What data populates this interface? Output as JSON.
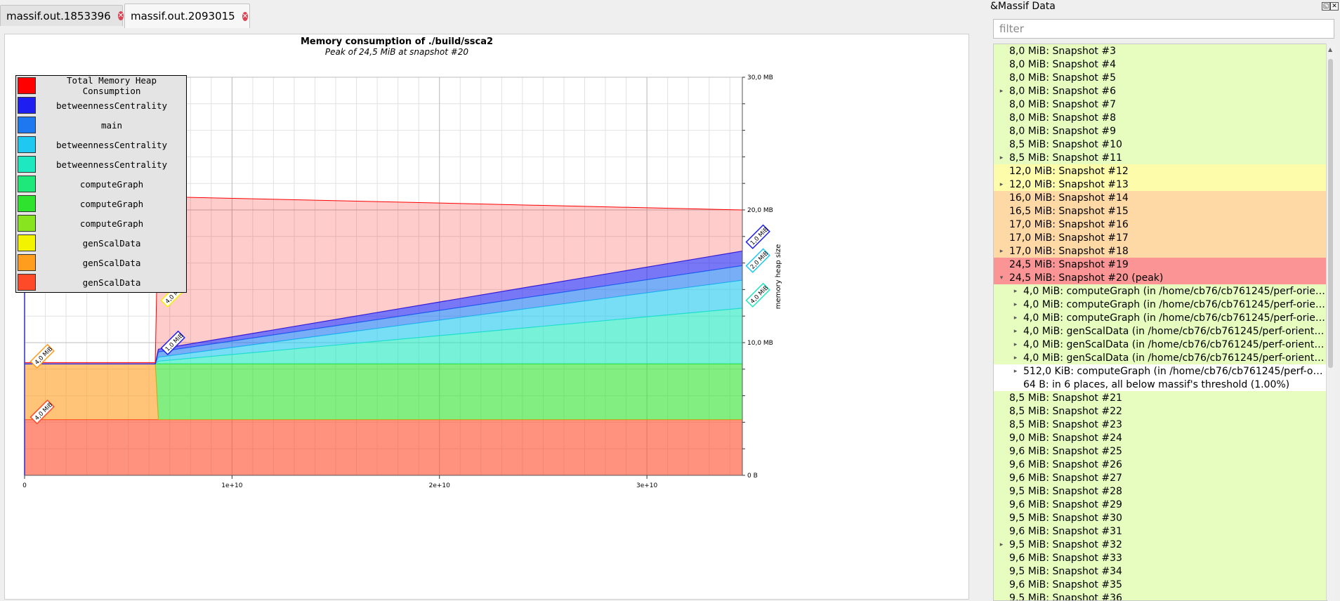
{
  "tabs": [
    {
      "label": "massif.out.1853396",
      "active": false
    },
    {
      "label": "massif.out.2093015",
      "active": true
    }
  ],
  "panel": {
    "title": "&Massif Data",
    "filter_placeholder": "filter",
    "rows": [
      {
        "text": "8,0 MiB: Snapshot #3",
        "bg": "#e7fcbf",
        "expandable": false,
        "expanded": false,
        "child": false
      },
      {
        "text": "8,0 MiB: Snapshot #4",
        "bg": "#e7fcbf",
        "expandable": false,
        "expanded": false,
        "child": false
      },
      {
        "text": "8,0 MiB: Snapshot #5",
        "bg": "#e7fcbf",
        "expandable": false,
        "expanded": false,
        "child": false
      },
      {
        "text": "8,0 MiB: Snapshot #6",
        "bg": "#e7fcbf",
        "expandable": true,
        "expanded": false,
        "child": false
      },
      {
        "text": "8,0 MiB: Snapshot #7",
        "bg": "#e7fcbf",
        "expandable": false,
        "expanded": false,
        "child": false
      },
      {
        "text": "8,0 MiB: Snapshot #8",
        "bg": "#e7fcbf",
        "expandable": false,
        "expanded": false,
        "child": false
      },
      {
        "text": "8,0 MiB: Snapshot #9",
        "bg": "#e7fcbf",
        "expandable": false,
        "expanded": false,
        "child": false
      },
      {
        "text": "8,5 MiB: Snapshot #10",
        "bg": "#e7fcbf",
        "expandable": false,
        "expanded": false,
        "child": false
      },
      {
        "text": "8,5 MiB: Snapshot #11",
        "bg": "#e7fcbf",
        "expandable": true,
        "expanded": false,
        "child": false
      },
      {
        "text": "12,0 MiB: Snapshot #12",
        "bg": "#fdfcaa",
        "expandable": false,
        "expanded": false,
        "child": false
      },
      {
        "text": "12,0 MiB: Snapshot #13",
        "bg": "#fdfcaa",
        "expandable": true,
        "expanded": false,
        "child": false
      },
      {
        "text": "16,0 MiB: Snapshot #14",
        "bg": "#fed9a5",
        "expandable": false,
        "expanded": false,
        "child": false
      },
      {
        "text": "16,5 MiB: Snapshot #15",
        "bg": "#fed9a5",
        "expandable": false,
        "expanded": false,
        "child": false
      },
      {
        "text": "17,0 MiB: Snapshot #16",
        "bg": "#fed9a5",
        "expandable": false,
        "expanded": false,
        "child": false
      },
      {
        "text": "17,0 MiB: Snapshot #17",
        "bg": "#fed9a5",
        "expandable": false,
        "expanded": false,
        "child": false
      },
      {
        "text": "17,0 MiB: Snapshot #18",
        "bg": "#fed9a5",
        "expandable": true,
        "expanded": false,
        "child": false
      },
      {
        "text": "24,5 MiB: Snapshot #19",
        "bg": "#fb9595",
        "expandable": false,
        "expanded": false,
        "child": false
      },
      {
        "text": "24,5 MiB: Snapshot #20 (peak)",
        "bg": "#fb9595",
        "expandable": true,
        "expanded": true,
        "child": false
      },
      {
        "text": "4,0 MiB: computeGraph (in /home/cb76/cb761245/perf-orien…",
        "bg": "#e7fcbf",
        "expandable": true,
        "expanded": false,
        "child": true
      },
      {
        "text": "4,0 MiB: computeGraph (in /home/cb76/cb761245/perf-orien…",
        "bg": "#e7fcbf",
        "expandable": true,
        "expanded": false,
        "child": true
      },
      {
        "text": "4,0 MiB: computeGraph (in /home/cb76/cb761245/perf-orien…",
        "bg": "#e7fcbf",
        "expandable": true,
        "expanded": false,
        "child": true
      },
      {
        "text": "4,0 MiB: genScalData (in /home/cb76/cb761245/perf-oriente…",
        "bg": "#e7fcbf",
        "expandable": true,
        "expanded": false,
        "child": true
      },
      {
        "text": "4,0 MiB: genScalData (in /home/cb76/cb761245/perf-oriente…",
        "bg": "#e7fcbf",
        "expandable": true,
        "expanded": false,
        "child": true
      },
      {
        "text": "4,0 MiB: genScalData (in /home/cb76/cb761245/perf-oriente…",
        "bg": "#e7fcbf",
        "expandable": true,
        "expanded": false,
        "child": true
      },
      {
        "text": "512,0 KiB: computeGraph (in /home/cb76/cb761245/perf-orie…",
        "bg": "#ffffff",
        "expandable": true,
        "expanded": false,
        "child": true
      },
      {
        "text": "64 B: in 6 places, all below massif's threshold (1.00%)",
        "bg": "#ffffff",
        "expandable": false,
        "expanded": false,
        "child": true
      },
      {
        "text": "8,5 MiB: Snapshot #21",
        "bg": "#e7fcbf",
        "expandable": false,
        "expanded": false,
        "child": false
      },
      {
        "text": "8,5 MiB: Snapshot #22",
        "bg": "#e7fcbf",
        "expandable": false,
        "expanded": false,
        "child": false
      },
      {
        "text": "8,5 MiB: Snapshot #23",
        "bg": "#e7fcbf",
        "expandable": false,
        "expanded": false,
        "child": false
      },
      {
        "text": "9,0 MiB: Snapshot #24",
        "bg": "#e7fcbf",
        "expandable": false,
        "expanded": false,
        "child": false
      },
      {
        "text": "9,6 MiB: Snapshot #25",
        "bg": "#e7fcbf",
        "expandable": false,
        "expanded": false,
        "child": false
      },
      {
        "text": "9,6 MiB: Snapshot #26",
        "bg": "#e7fcbf",
        "expandable": false,
        "expanded": false,
        "child": false
      },
      {
        "text": "9,6 MiB: Snapshot #27",
        "bg": "#e7fcbf",
        "expandable": false,
        "expanded": false,
        "child": false
      },
      {
        "text": "9,5 MiB: Snapshot #28",
        "bg": "#e7fcbf",
        "expandable": false,
        "expanded": false,
        "child": false
      },
      {
        "text": "9,6 MiB: Snapshot #29",
        "bg": "#e7fcbf",
        "expandable": false,
        "expanded": false,
        "child": false
      },
      {
        "text": "9,5 MiB: Snapshot #30",
        "bg": "#e7fcbf",
        "expandable": false,
        "expanded": false,
        "child": false
      },
      {
        "text": "9,6 MiB: Snapshot #31",
        "bg": "#e7fcbf",
        "expandable": false,
        "expanded": false,
        "child": false
      },
      {
        "text": "9,5 MiB: Snapshot #32",
        "bg": "#e7fcbf",
        "expandable": true,
        "expanded": false,
        "child": false
      },
      {
        "text": "9,6 MiB: Snapshot #33",
        "bg": "#e7fcbf",
        "expandable": false,
        "expanded": false,
        "child": false
      },
      {
        "text": "9,5 MiB: Snapshot #34",
        "bg": "#e7fcbf",
        "expandable": false,
        "expanded": false,
        "child": false
      },
      {
        "text": "9,6 MiB: Snapshot #35",
        "bg": "#e7fcbf",
        "expandable": false,
        "expanded": false,
        "child": false
      },
      {
        "text": "9,5 MiB: Snapshot #36",
        "bg": "#e7fcbf",
        "expandable": false,
        "expanded": false,
        "child": false
      }
    ]
  },
  "chart_data": {
    "type": "area",
    "title": "Memory consumption of ./build/ssca2",
    "subtitle": "Peak of 24,5 MiB at snapshot #20",
    "ylabel": "memory heap size",
    "xlim": [
      0,
      34600000000
    ],
    "ylim": [
      0,
      30
    ],
    "x_ticks": [
      {
        "value": 0,
        "label": "0"
      },
      {
        "value": 10000000000,
        "label": "1e+10"
      },
      {
        "value": 20000000000,
        "label": "2e+10"
      },
      {
        "value": 30000000000,
        "label": "3e+10"
      }
    ],
    "y_ticks": [
      {
        "value": 0,
        "label": "0 B"
      },
      {
        "value": 10,
        "label": "10,0 MB"
      },
      {
        "value": 20,
        "label": "20,0 MB"
      },
      {
        "value": 30,
        "label": "30,0 MB"
      }
    ],
    "x": [
      0,
      6300000000,
      6450000000,
      34600000000
    ],
    "legend_position": "top-left",
    "series": [
      {
        "name": "genScalData",
        "color": "#ff4a2a",
        "values": [
          4.2,
          4.2,
          4.2,
          4.2
        ]
      },
      {
        "name": "genScalData",
        "color": "#ff9d1e",
        "values": [
          4.2,
          4.2,
          0,
          0
        ]
      },
      {
        "name": "genScalData",
        "color": "#f3f300",
        "values": [
          0,
          0,
          0,
          0
        ]
      },
      {
        "name": "computeGraph",
        "color": "#88e41e",
        "values": [
          0,
          0,
          0,
          0
        ]
      },
      {
        "name": "computeGraph",
        "color": "#2ee22e",
        "values": [
          0,
          0,
          4.2,
          4.2
        ]
      },
      {
        "name": "computeGraph",
        "color": "#1ee87a",
        "values": [
          0,
          0,
          0,
          0
        ]
      },
      {
        "name": "betweennessCentrality",
        "color": "#1ee8c0",
        "values": [
          0,
          0,
          0.2,
          4.2
        ]
      },
      {
        "name": "betweennessCentrality",
        "color": "#1ec8f0",
        "values": [
          0,
          0,
          0.3,
          2.1
        ]
      },
      {
        "name": "main",
        "color": "#1e78f0",
        "values": [
          0,
          0,
          0.4,
          1.1
        ]
      },
      {
        "name": "betweennessCentrality",
        "color": "#1e1ef0",
        "values": [
          0,
          0,
          0.2,
          1.1
        ]
      },
      {
        "name": "Total Memory Heap Consumption",
        "color": "#ff0000",
        "values": [
          8.5,
          8.5,
          21,
          20
        ]
      }
    ],
    "legend": [
      {
        "label": "Total Memory Heap Consumption",
        "color": "#ff0000"
      },
      {
        "label": "betweennessCentrality",
        "color": "#1e1ef0"
      },
      {
        "label": "main",
        "color": "#1e78f0"
      },
      {
        "label": "betweennessCentrality",
        "color": "#1ec8f0"
      },
      {
        "label": "betweennessCentrality",
        "color": "#1ee8c0"
      },
      {
        "label": "computeGraph",
        "color": "#1ee87a"
      },
      {
        "label": "computeGraph",
        "color": "#2ee22e"
      },
      {
        "label": "computeGraph",
        "color": "#88e41e"
      },
      {
        "label": "genScalData",
        "color": "#f3f300"
      },
      {
        "label": "genScalData",
        "color": "#ff9d1e"
      },
      {
        "label": "genScalData",
        "color": "#ff4a2a"
      }
    ],
    "annotations": [
      {
        "text": "4,0 MiB",
        "x": 600000000,
        "y": 4.2,
        "color": "#ff4a2a"
      },
      {
        "text": "4,0 MiB",
        "x": 600000000,
        "y": 8.4,
        "color": "#ff9d1e"
      },
      {
        "text": "1,0 MiB",
        "x": 6900000000,
        "y": 9.4,
        "color": "#1e1ef0"
      },
      {
        "text": "4,0 MiB",
        "x": 6900000000,
        "y": 13.0,
        "color": "#f3f300"
      },
      {
        "text": "4,0 MiB",
        "x": 6900000000,
        "y": 17.2,
        "color": "#88e41e"
      },
      {
        "text": "4,0 MiB",
        "x": 6900000000,
        "y": 21.4,
        "color": "#2ee22e"
      },
      {
        "text": "4,0 MiB",
        "x": 6900000000,
        "y": 25.6,
        "color": "#1ee87a"
      },
      {
        "text": "24,5 MiB",
        "x": 6900000000,
        "y": 26.5,
        "color": "#ff0000"
      },
      {
        "text": "4,0 MiB",
        "x": 35100000000,
        "y": 13.0,
        "color": "#1ee8c0"
      },
      {
        "text": "2,0 MiB",
        "x": 35100000000,
        "y": 15.6,
        "color": "#1ec8f0"
      },
      {
        "text": "1,0 MiB",
        "x": 35100000000,
        "y": 17.4,
        "color": "#1e1ef0"
      }
    ]
  }
}
